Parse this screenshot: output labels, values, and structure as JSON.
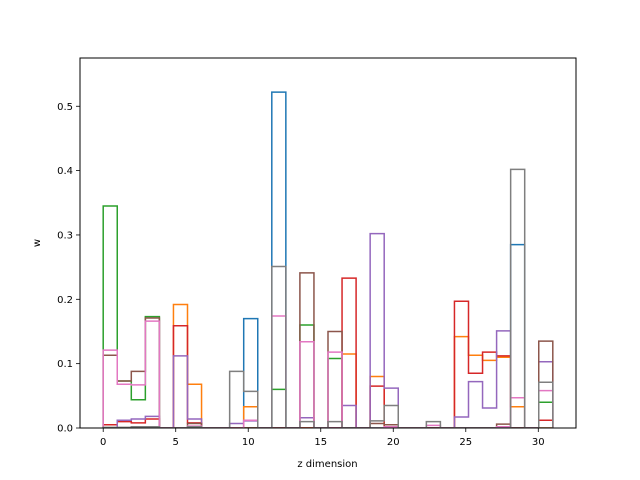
{
  "chart_data": {
    "type": "step-histogram",
    "title": "",
    "xlabel": "z dimension",
    "ylabel": "w",
    "xlim": [
      -1.6,
      32.6
    ],
    "ylim": [
      0,
      0.575
    ],
    "xticks": [
      0,
      5,
      10,
      15,
      20,
      25,
      30
    ],
    "yticks": [
      0.0,
      0.1,
      0.2,
      0.3,
      0.4,
      0.5
    ],
    "grid": false,
    "legend": "none",
    "bins": 32,
    "series": [
      {
        "color": "#1f77b4",
        "values": [
          0,
          0,
          0,
          0,
          0,
          0,
          0,
          0,
          0,
          0,
          0.17,
          0,
          0.522,
          0,
          0,
          0,
          0,
          0,
          0,
          0,
          0,
          0,
          0,
          0,
          0,
          0,
          0,
          0,
          0,
          0.285,
          0,
          0
        ]
      },
      {
        "color": "#ff7f0e",
        "values": [
          0,
          0,
          0,
          0,
          0,
          0.192,
          0.068,
          0,
          0,
          0,
          0.033,
          0,
          0,
          0,
          0,
          0,
          0,
          0.115,
          0,
          0.08,
          0,
          0,
          0,
          0,
          0,
          0.142,
          0.113,
          0.105,
          0.11,
          0.033,
          0,
          0
        ]
      },
      {
        "color": "#2ca02c",
        "values": [
          0.345,
          0.073,
          0.044,
          0.173,
          0,
          0,
          0,
          0,
          0,
          0,
          0,
          0,
          0.06,
          0,
          0.16,
          0,
          0.108,
          0,
          0,
          0,
          0,
          0,
          0,
          0,
          0,
          0,
          0,
          0,
          0,
          0,
          0,
          0.04
        ]
      },
      {
        "color": "#d62728",
        "values": [
          0.005,
          0.01,
          0.008,
          0.014,
          0,
          0.159,
          0.008,
          0,
          0,
          0,
          0,
          0,
          0,
          0,
          0,
          0,
          0,
          0.233,
          0,
          0.065,
          0,
          0,
          0,
          0,
          0,
          0.197,
          0.085,
          0.118,
          0.112,
          0,
          0,
          0.012
        ]
      },
      {
        "color": "#9467bd",
        "values": [
          0,
          0.012,
          0.014,
          0.018,
          0,
          0.112,
          0.014,
          0,
          0,
          0.007,
          0.011,
          0,
          0,
          0,
          0.016,
          0,
          0,
          0.035,
          0,
          0.302,
          0.062,
          0,
          0,
          0,
          0,
          0.017,
          0.072,
          0.031,
          0.151,
          0,
          0,
          0.103
        ]
      },
      {
        "color": "#8c564b",
        "values": [
          0.113,
          0.073,
          0.088,
          0.171,
          0,
          0,
          0.007,
          0,
          0,
          0,
          0,
          0,
          0,
          0,
          0.241,
          0,
          0.15,
          0,
          0,
          0.007,
          0.005,
          0,
          0,
          0,
          0,
          0,
          0,
          0,
          0.006,
          0,
          0,
          0.135
        ]
      },
      {
        "color": "#e377c2",
        "values": [
          0.121,
          0.068,
          0.067,
          0.166,
          0,
          0,
          0.003,
          0,
          0,
          0,
          0.012,
          0,
          0.174,
          0,
          0.134,
          0,
          0.118,
          0,
          0,
          0,
          0.002,
          0,
          0,
          0.004,
          0,
          0,
          0,
          0,
          0.002,
          0.047,
          0,
          0.058
        ]
      },
      {
        "color": "#7f7f7f",
        "values": [
          0.001,
          0.001,
          0.002,
          0.002,
          0,
          0,
          0.002,
          0,
          0,
          0.088,
          0.057,
          0,
          0.251,
          0,
          0.01,
          0,
          0.01,
          0,
          0,
          0.011,
          0.035,
          0,
          0,
          0.01,
          0,
          0,
          0,
          0,
          0,
          0.402,
          0,
          0.071
        ]
      }
    ]
  }
}
